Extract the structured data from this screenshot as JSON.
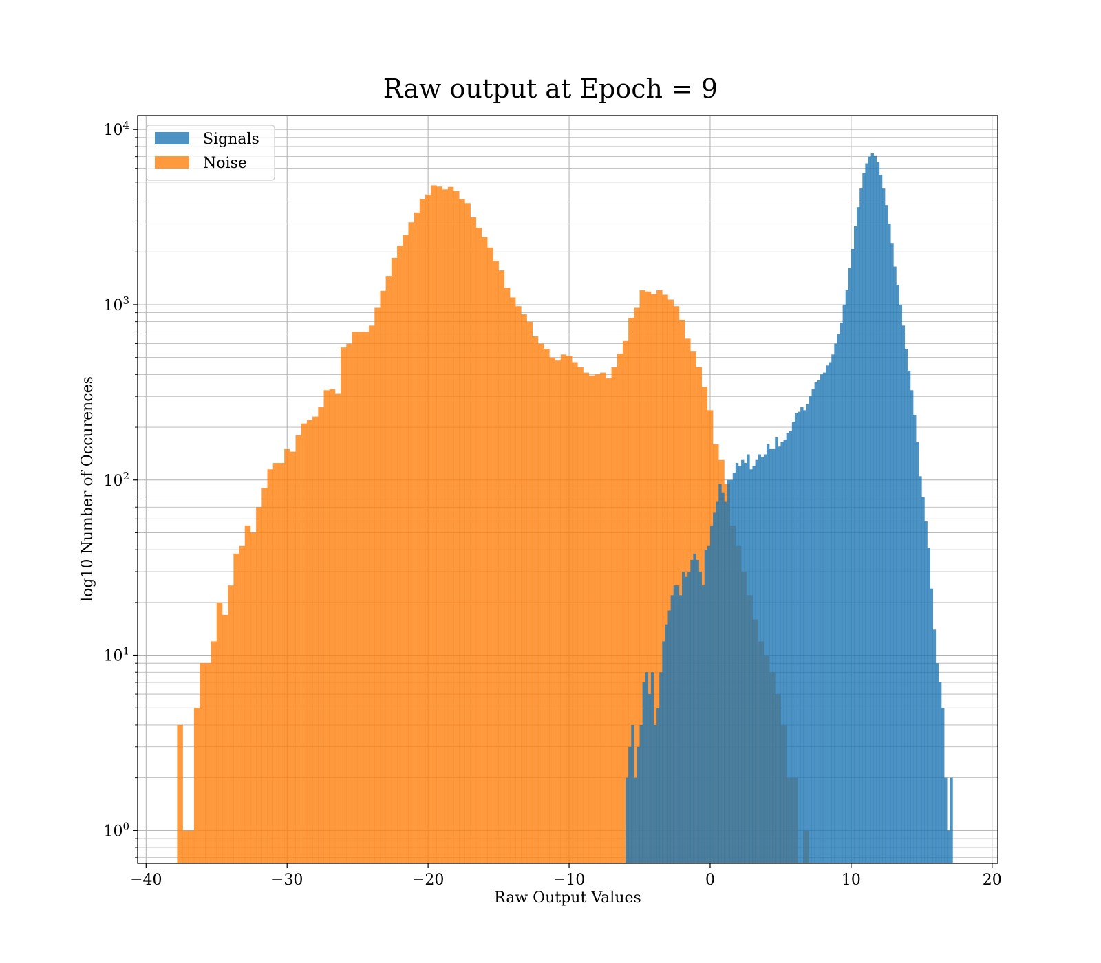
{
  "chart_data": {
    "type": "bar",
    "title": "Raw output at Epoch = 9",
    "xlabel": "Raw Output Values",
    "ylabel": "log10 Number of Occurences",
    "yscale": "log",
    "xlim": [
      -40.6,
      20.4
    ],
    "ylim": [
      0.65,
      12000
    ],
    "grid": true,
    "grid_minor": true,
    "legend_position": "top-left",
    "x_ticks": [
      "−40",
      "−30",
      "−20",
      "−10",
      "0",
      "10",
      "20"
    ],
    "y_ticks": [
      {
        "base": "10",
        "exp": "0"
      },
      {
        "base": "10",
        "exp": "1"
      },
      {
        "base": "10",
        "exp": "2"
      },
      {
        "base": "10",
        "exp": "3"
      },
      {
        "base": "10",
        "exp": "4"
      }
    ],
    "series": [
      {
        "name": "Noise",
        "color": "#ff7f0e",
        "alpha": 0.8,
        "bins": [
          [
            -37.8,
            -37.4,
            4
          ],
          [
            -37.4,
            -37.0,
            1
          ],
          [
            -37.0,
            -36.6,
            1
          ],
          [
            -36.6,
            -36.2,
            5
          ],
          [
            -36.2,
            -35.8,
            9
          ],
          [
            -35.8,
            -35.4,
            9
          ],
          [
            -35.4,
            -35.0,
            12
          ],
          [
            -35.0,
            -34.6,
            20
          ],
          [
            -34.6,
            -34.2,
            17
          ],
          [
            -34.2,
            -33.8,
            25
          ],
          [
            -33.8,
            -33.4,
            38
          ],
          [
            -33.4,
            -33.0,
            42
          ],
          [
            -33.0,
            -32.6,
            55
          ],
          [
            -32.6,
            -32.2,
            50
          ],
          [
            -32.2,
            -31.8,
            70
          ],
          [
            -31.8,
            -31.4,
            90
          ],
          [
            -31.4,
            -31.0,
            115
          ],
          [
            -31.0,
            -30.6,
            125
          ],
          [
            -30.6,
            -30.2,
            125
          ],
          [
            -30.2,
            -29.8,
            150
          ],
          [
            -29.8,
            -29.4,
            145
          ],
          [
            -29.4,
            -29.0,
            180
          ],
          [
            -29.0,
            -28.6,
            210
          ],
          [
            -28.6,
            -28.2,
            220
          ],
          [
            -28.2,
            -27.8,
            230
          ],
          [
            -27.8,
            -27.4,
            260
          ],
          [
            -27.4,
            -27.0,
            325
          ],
          [
            -27.0,
            -26.6,
            330
          ],
          [
            -26.6,
            -26.2,
            310
          ],
          [
            -26.2,
            -25.8,
            570
          ],
          [
            -25.8,
            -25.4,
            600
          ],
          [
            -25.4,
            -25.0,
            700
          ],
          [
            -25.0,
            -24.6,
            700
          ],
          [
            -24.6,
            -24.2,
            700
          ],
          [
            -24.2,
            -23.8,
            760
          ],
          [
            -23.8,
            -23.4,
            960
          ],
          [
            -23.4,
            -23.0,
            1200
          ],
          [
            -23.0,
            -22.6,
            1460
          ],
          [
            -22.6,
            -22.2,
            1850
          ],
          [
            -22.2,
            -21.8,
            2170
          ],
          [
            -21.8,
            -21.4,
            2500
          ],
          [
            -21.4,
            -21.0,
            2950
          ],
          [
            -21.0,
            -20.6,
            3360
          ],
          [
            -20.6,
            -20.2,
            4000
          ],
          [
            -20.2,
            -19.8,
            4250
          ],
          [
            -19.8,
            -19.4,
            4800
          ],
          [
            -19.4,
            -19.0,
            4720
          ],
          [
            -19.0,
            -18.6,
            4550
          ],
          [
            -18.6,
            -18.2,
            4700
          ],
          [
            -18.2,
            -17.8,
            4450
          ],
          [
            -17.8,
            -17.4,
            4000
          ],
          [
            -17.4,
            -17.0,
            3800
          ],
          [
            -17.0,
            -16.6,
            3150
          ],
          [
            -16.6,
            -16.2,
            2750
          ],
          [
            -16.2,
            -15.8,
            2430
          ],
          [
            -15.8,
            -15.4,
            2120
          ],
          [
            -15.4,
            -15.0,
            1780
          ],
          [
            -15.0,
            -14.6,
            1570
          ],
          [
            -14.6,
            -14.2,
            1250
          ],
          [
            -14.2,
            -13.8,
            1100
          ],
          [
            -13.8,
            -13.4,
            980
          ],
          [
            -13.4,
            -13.0,
            880
          ],
          [
            -13.0,
            -12.6,
            800
          ],
          [
            -12.6,
            -12.2,
            660
          ],
          [
            -12.2,
            -11.8,
            600
          ],
          [
            -11.8,
            -11.4,
            560
          ],
          [
            -11.4,
            -11.0,
            500
          ],
          [
            -11.0,
            -10.6,
            480
          ],
          [
            -10.6,
            -10.2,
            520
          ],
          [
            -10.2,
            -9.8,
            510
          ],
          [
            -9.8,
            -9.4,
            470
          ],
          [
            -9.4,
            -9.0,
            440
          ],
          [
            -9.0,
            -8.6,
            410
          ],
          [
            -8.6,
            -8.2,
            395
          ],
          [
            -8.2,
            -7.8,
            400
          ],
          [
            -7.8,
            -7.4,
            410
          ],
          [
            -7.4,
            -7.0,
            380
          ],
          [
            -7.0,
            -6.6,
            440
          ],
          [
            -6.6,
            -6.2,
            525
          ],
          [
            -6.2,
            -5.8,
            620
          ],
          [
            -5.8,
            -5.4,
            840
          ],
          [
            -5.4,
            -5.0,
            960
          ],
          [
            -5.0,
            -4.6,
            1210
          ],
          [
            -4.6,
            -4.2,
            1190
          ],
          [
            -4.2,
            -3.8,
            1150
          ],
          [
            -3.8,
            -3.4,
            1210
          ],
          [
            -3.4,
            -3.0,
            1140
          ],
          [
            -3.0,
            -2.6,
            1070
          ],
          [
            -2.6,
            -2.2,
            980
          ],
          [
            -2.2,
            -1.8,
            820
          ],
          [
            -1.8,
            -1.4,
            640
          ],
          [
            -1.4,
            -1.0,
            540
          ],
          [
            -1.0,
            -0.6,
            440
          ],
          [
            -0.6,
            -0.2,
            340
          ],
          [
            -0.2,
            0.2,
            250
          ],
          [
            0.2,
            0.6,
            160
          ],
          [
            0.6,
            1.0,
            130
          ],
          [
            1.0,
            1.4,
            95
          ],
          [
            1.4,
            1.8,
            55
          ],
          [
            1.8,
            2.2,
            42
          ],
          [
            2.2,
            2.6,
            30
          ],
          [
            2.6,
            3.0,
            22
          ],
          [
            3.0,
            3.4,
            16
          ],
          [
            3.4,
            3.8,
            12
          ],
          [
            3.8,
            4.2,
            10
          ],
          [
            4.2,
            4.6,
            8
          ],
          [
            4.6,
            5.0,
            6
          ],
          [
            5.0,
            5.4,
            4
          ],
          [
            5.4,
            5.8,
            2
          ],
          [
            5.8,
            6.2,
            2
          ],
          [
            6.6,
            7.0,
            1
          ]
        ]
      },
      {
        "name": "Signals",
        "color": "#1f77b4",
        "alpha": 0.8,
        "bins": [
          [
            -6.0,
            -5.8,
            2
          ],
          [
            -5.8,
            -5.6,
            3
          ],
          [
            -5.6,
            -5.4,
            4
          ],
          [
            -5.4,
            -5.2,
            2
          ],
          [
            -5.2,
            -5.0,
            3
          ],
          [
            -5.0,
            -4.8,
            4
          ],
          [
            -4.8,
            -4.6,
            7
          ],
          [
            -4.6,
            -4.4,
            8
          ],
          [
            -4.4,
            -4.2,
            6
          ],
          [
            -4.2,
            -4.0,
            8
          ],
          [
            -4.0,
            -3.8,
            4
          ],
          [
            -3.8,
            -3.6,
            5
          ],
          [
            -3.6,
            -3.4,
            8
          ],
          [
            -3.4,
            -3.2,
            12
          ],
          [
            -3.2,
            -3.0,
            15
          ],
          [
            -3.0,
            -2.8,
            18
          ],
          [
            -2.8,
            -2.6,
            22
          ],
          [
            -2.6,
            -2.4,
            25
          ],
          [
            -2.4,
            -2.2,
            25
          ],
          [
            -2.2,
            -2.0,
            22
          ],
          [
            -2.0,
            -1.8,
            30
          ],
          [
            -1.8,
            -1.6,
            28
          ],
          [
            -1.6,
            -1.4,
            30
          ],
          [
            -1.4,
            -1.2,
            35
          ],
          [
            -1.2,
            -1.0,
            38
          ],
          [
            -1.0,
            -0.8,
            35
          ],
          [
            -0.8,
            -0.6,
            30
          ],
          [
            -0.6,
            -0.4,
            25
          ],
          [
            -0.4,
            -0.2,
            40
          ],
          [
            -0.2,
            0.0,
            42
          ],
          [
            0.0,
            0.2,
            55
          ],
          [
            0.2,
            0.4,
            65
          ],
          [
            0.4,
            0.6,
            75
          ],
          [
            0.6,
            0.8,
            95
          ],
          [
            0.8,
            1.0,
            85
          ],
          [
            1.0,
            1.2,
            75
          ],
          [
            1.2,
            1.4,
            100
          ],
          [
            1.4,
            1.6,
            100
          ],
          [
            1.6,
            1.8,
            110
          ],
          [
            1.8,
            2.0,
            125
          ],
          [
            2.0,
            2.2,
            120
          ],
          [
            2.2,
            2.4,
            130
          ],
          [
            2.4,
            2.6,
            125
          ],
          [
            2.6,
            2.8,
            140
          ],
          [
            2.8,
            3.0,
            115
          ],
          [
            3.0,
            3.2,
            120
          ],
          [
            3.2,
            3.4,
            130
          ],
          [
            3.4,
            3.6,
            140
          ],
          [
            3.6,
            3.8,
            135
          ],
          [
            3.8,
            4.0,
            140
          ],
          [
            4.0,
            4.2,
            160
          ],
          [
            4.2,
            4.4,
            150
          ],
          [
            4.4,
            4.6,
            150
          ],
          [
            4.6,
            4.8,
            175
          ],
          [
            4.8,
            5.0,
            155
          ],
          [
            5.0,
            5.2,
            165
          ],
          [
            5.2,
            5.4,
            170
          ],
          [
            5.4,
            5.6,
            185
          ],
          [
            5.6,
            5.8,
            190
          ],
          [
            5.8,
            6.0,
            215
          ],
          [
            6.0,
            6.2,
            240
          ],
          [
            6.2,
            6.4,
            245
          ],
          [
            6.4,
            6.6,
            260
          ],
          [
            6.6,
            6.8,
            250
          ],
          [
            6.8,
            7.0,
            270
          ],
          [
            7.0,
            7.2,
            300
          ],
          [
            7.2,
            7.4,
            330
          ],
          [
            7.4,
            7.6,
            360
          ],
          [
            7.6,
            7.8,
            370
          ],
          [
            7.8,
            8.0,
            400
          ],
          [
            8.0,
            8.2,
            410
          ],
          [
            8.2,
            8.4,
            450
          ],
          [
            8.4,
            8.6,
            470
          ],
          [
            8.6,
            8.8,
            520
          ],
          [
            8.8,
            9.0,
            600
          ],
          [
            9.0,
            9.2,
            680
          ],
          [
            9.2,
            9.4,
            790
          ],
          [
            9.4,
            9.6,
            1000
          ],
          [
            9.6,
            9.8,
            1210
          ],
          [
            9.8,
            10.0,
            1620
          ],
          [
            10.0,
            10.2,
            2080
          ],
          [
            10.2,
            10.4,
            2800
          ],
          [
            10.4,
            10.6,
            3600
          ],
          [
            10.6,
            10.8,
            4600
          ],
          [
            10.8,
            11.0,
            5650
          ],
          [
            11.0,
            11.2,
            6400
          ],
          [
            11.2,
            11.4,
            7000
          ],
          [
            11.4,
            11.6,
            7300
          ],
          [
            11.6,
            11.8,
            7050
          ],
          [
            11.8,
            12.0,
            6500
          ],
          [
            12.0,
            12.2,
            5500
          ],
          [
            12.2,
            12.4,
            4600
          ],
          [
            12.4,
            12.6,
            3700
          ],
          [
            12.6,
            12.8,
            2900
          ],
          [
            12.8,
            13.0,
            2250
          ],
          [
            13.0,
            13.2,
            1650
          ],
          [
            13.2,
            13.4,
            1300
          ],
          [
            13.4,
            13.6,
            1000
          ],
          [
            13.6,
            13.8,
            760
          ],
          [
            13.8,
            14.0,
            560
          ],
          [
            14.0,
            14.2,
            420
          ],
          [
            14.2,
            14.4,
            325
          ],
          [
            14.4,
            14.6,
            235
          ],
          [
            14.6,
            14.8,
            165
          ],
          [
            14.8,
            15.0,
            105
          ],
          [
            15.0,
            15.2,
            80
          ],
          [
            15.2,
            15.4,
            58
          ],
          [
            15.4,
            15.6,
            41
          ],
          [
            15.6,
            15.8,
            24
          ],
          [
            15.8,
            16.0,
            14
          ],
          [
            16.0,
            16.2,
            9
          ],
          [
            16.2,
            16.4,
            7
          ],
          [
            16.4,
            16.6,
            5
          ],
          [
            16.6,
            16.8,
            2
          ],
          [
            16.8,
            17.0,
            1
          ],
          [
            17.0,
            17.2,
            2
          ]
        ]
      }
    ]
  }
}
